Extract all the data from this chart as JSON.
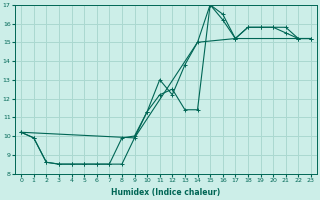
{
  "xlabel": "Humidex (Indice chaleur)",
  "bg_color": "#cceee8",
  "grid_color": "#aad8d0",
  "line_color": "#006655",
  "xlim": [
    -0.5,
    23.5
  ],
  "ylim": [
    8,
    17
  ],
  "xticks": [
    0,
    1,
    2,
    3,
    4,
    5,
    6,
    7,
    8,
    9,
    10,
    11,
    12,
    13,
    14,
    15,
    16,
    17,
    18,
    19,
    20,
    21,
    22,
    23
  ],
  "yticks": [
    8,
    9,
    10,
    11,
    12,
    13,
    14,
    15,
    16,
    17
  ],
  "line1_x": [
    0,
    1,
    2,
    3,
    4,
    5,
    6,
    7,
    8,
    9,
    10,
    11,
    12,
    13,
    14,
    15,
    16,
    17,
    18,
    19,
    20,
    21,
    22,
    23
  ],
  "line1_y": [
    10.2,
    9.9,
    8.6,
    8.5,
    8.5,
    8.5,
    8.5,
    8.5,
    8.5,
    9.9,
    11.3,
    12.2,
    12.5,
    11.4,
    11.4,
    17.0,
    16.2,
    15.2,
    15.8,
    15.8,
    15.8,
    15.8,
    15.2,
    15.2
  ],
  "line2_x": [
    0,
    1,
    2,
    3,
    4,
    5,
    6,
    7,
    8,
    9,
    10,
    11,
    12,
    13,
    14,
    15,
    16,
    17,
    18,
    19,
    20,
    21,
    22,
    23
  ],
  "line2_y": [
    10.2,
    9.9,
    8.6,
    8.5,
    8.5,
    8.5,
    8.5,
    8.5,
    9.9,
    10.0,
    11.3,
    13.0,
    12.2,
    13.8,
    15.0,
    17.0,
    16.5,
    15.2,
    15.8,
    15.8,
    15.8,
    15.5,
    15.2,
    15.2
  ],
  "line3_x": [
    0,
    9,
    14,
    17,
    23
  ],
  "line3_y": [
    10.2,
    9.9,
    15.0,
    15.2,
    15.2
  ]
}
